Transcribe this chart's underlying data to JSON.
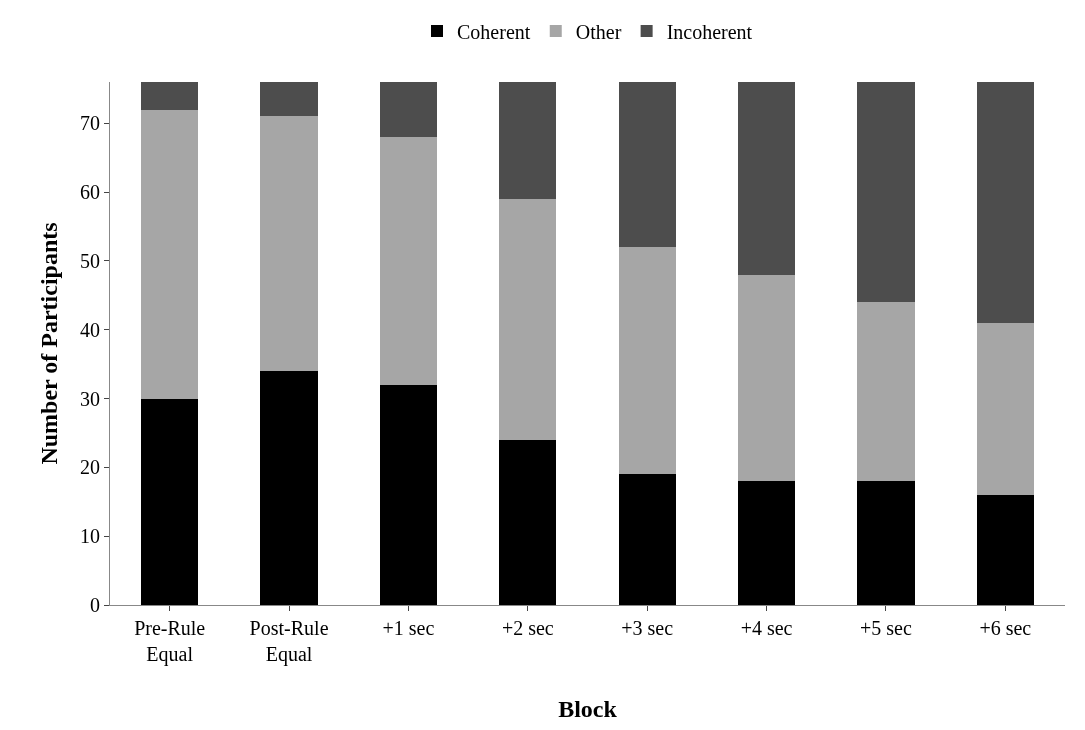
{
  "chart_data": {
    "type": "bar",
    "stacked": true,
    "xlabel": "Block",
    "ylabel": "Number of Participants",
    "categories": [
      "Pre-Rule\nEqual",
      "Post-Rule\nEqual",
      "+1 sec",
      "+2 sec",
      "+3 sec",
      "+4 sec",
      "+5 sec",
      "+6 sec"
    ],
    "series": [
      {
        "name": "Coherent",
        "color": "#000000",
        "values": [
          30,
          34,
          32,
          24,
          19,
          18,
          18,
          16
        ]
      },
      {
        "name": "Other",
        "color": "#a6a6a6",
        "values": [
          42,
          37,
          36,
          35,
          33,
          30,
          26,
          25
        ]
      },
      {
        "name": "Incoherent",
        "color": "#4d4d4d",
        "values": [
          4,
          5,
          8,
          17,
          24,
          28,
          32,
          35
        ]
      }
    ],
    "ylim": [
      0,
      76
    ],
    "yticks": [
      0,
      10,
      20,
      30,
      40,
      50,
      60,
      70
    ],
    "grid": false,
    "legend": "top"
  }
}
